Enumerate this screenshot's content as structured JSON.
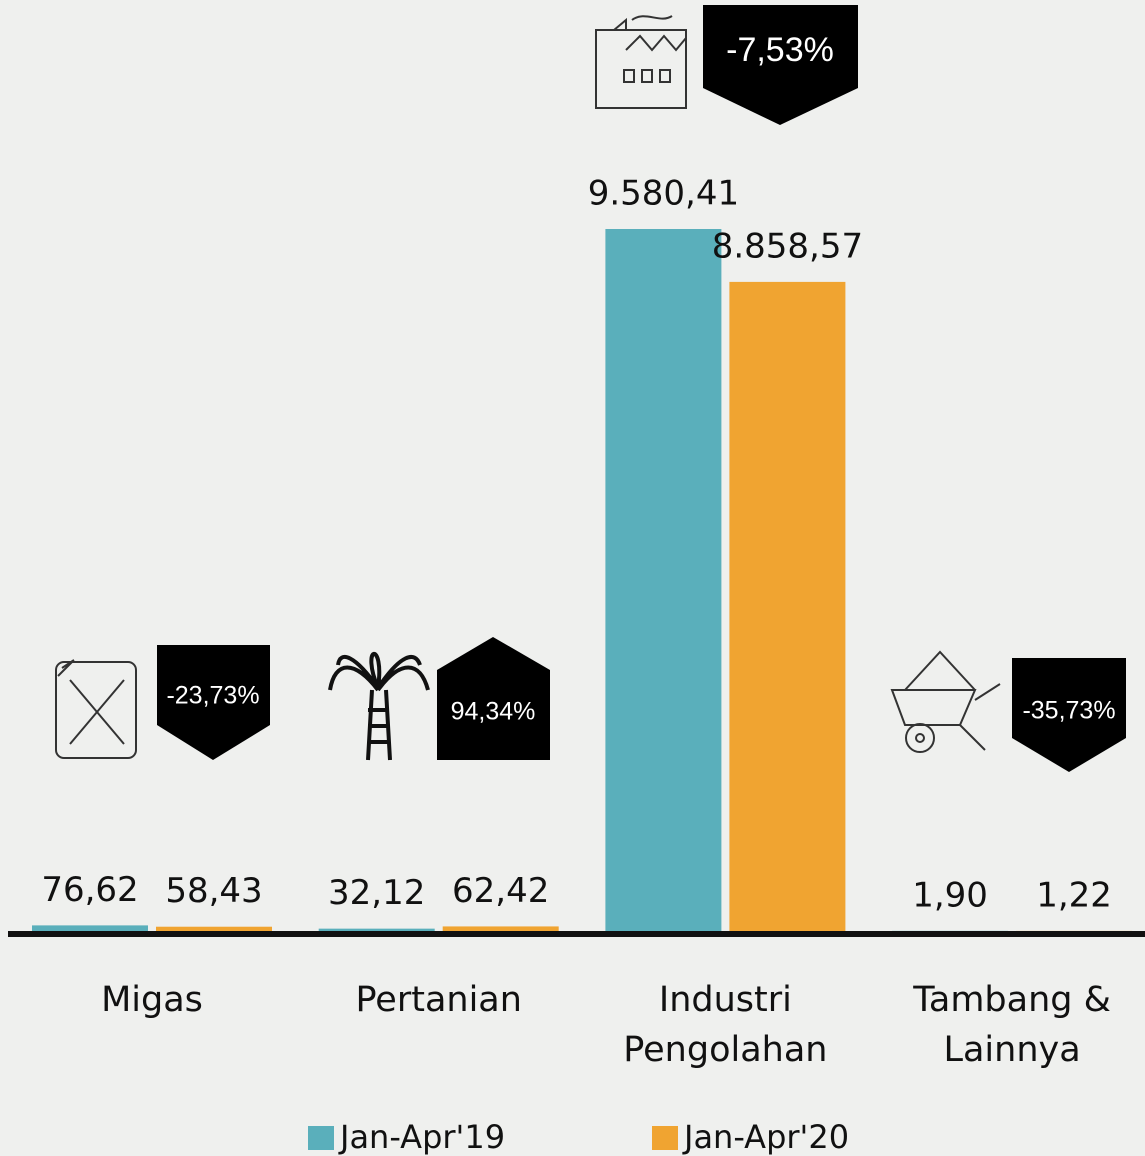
{
  "chart_data": {
    "type": "bar",
    "categories": [
      "Migas",
      "Pertanian",
      "Industri Pengolahan",
      "Tambang & Lainnya"
    ],
    "series": [
      {
        "name": "Jan-Apr'19",
        "color": "#5aafbb",
        "values": [
          76.62,
          32.12,
          9580.41,
          1.9
        ],
        "value_labels": [
          "76,62",
          "32,12",
          "9.580,41",
          "1,90"
        ]
      },
      {
        "name": "Jan-Apr'20",
        "color": "#f0a431",
        "values": [
          58.43,
          62.42,
          8858.57,
          1.22
        ],
        "value_labels": [
          "58,43",
          "62,42",
          "8.858,57",
          "1,22"
        ]
      }
    ],
    "annotations": [
      "-23,73%",
      "94,34%",
      "-7,53%",
      "-35,73%"
    ]
  }
}
